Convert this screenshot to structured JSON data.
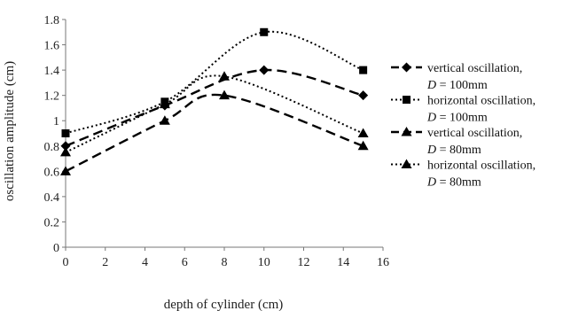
{
  "chart_data": {
    "type": "line",
    "title": "",
    "xlabel": "depth of cylinder (cm)",
    "ylabel": "oscillation amplitude (cm)",
    "xlim": [
      0,
      16
    ],
    "ylim": [
      0,
      1.8
    ],
    "xticks": [
      "0",
      "2",
      "4",
      "6",
      "8",
      "10",
      "12",
      "14",
      "16"
    ],
    "yticks": [
      "0",
      "0.2",
      "0.4",
      "0.6",
      "0.8",
      "1",
      "1.2",
      "1.4",
      "1.6",
      "1.8"
    ],
    "grid": false,
    "legend_position": "right",
    "series": [
      {
        "legend_line1": "vertical oscillation,",
        "legend_line2_prefix": "D",
        "legend_line2_rest": " = 100mm",
        "marker": "diamond",
        "line_style": "dashed",
        "color": "#000000",
        "x": [
          0,
          5,
          10,
          15
        ],
        "y": [
          0.8,
          1.12,
          1.4,
          1.2
        ]
      },
      {
        "legend_line1": "horizontal oscillation,",
        "legend_line2_prefix": "D",
        "legend_line2_rest": " = 100mm",
        "marker": "square",
        "line_style": "dotted",
        "color": "#000000",
        "x": [
          0,
          5,
          10,
          15
        ],
        "y": [
          0.9,
          1.15,
          1.7,
          1.4
        ]
      },
      {
        "legend_line1": "vertical oscillation,",
        "legend_line2_prefix": "D",
        "legend_line2_rest": " = 80mm",
        "marker": "triangle",
        "line_style": "dashed",
        "color": "#000000",
        "x": [
          0,
          5,
          8,
          15
        ],
        "y": [
          0.6,
          1.0,
          1.2,
          0.8
        ]
      },
      {
        "legend_line1": "horizontal oscillation,",
        "legend_line2_prefix": "D",
        "legend_line2_rest": " = 80mm",
        "marker": "triangle",
        "line_style": "dotted",
        "color": "#000000",
        "x": [
          0,
          5,
          8,
          15
        ],
        "y": [
          0.75,
          1.13,
          1.35,
          0.9
        ]
      }
    ]
  }
}
